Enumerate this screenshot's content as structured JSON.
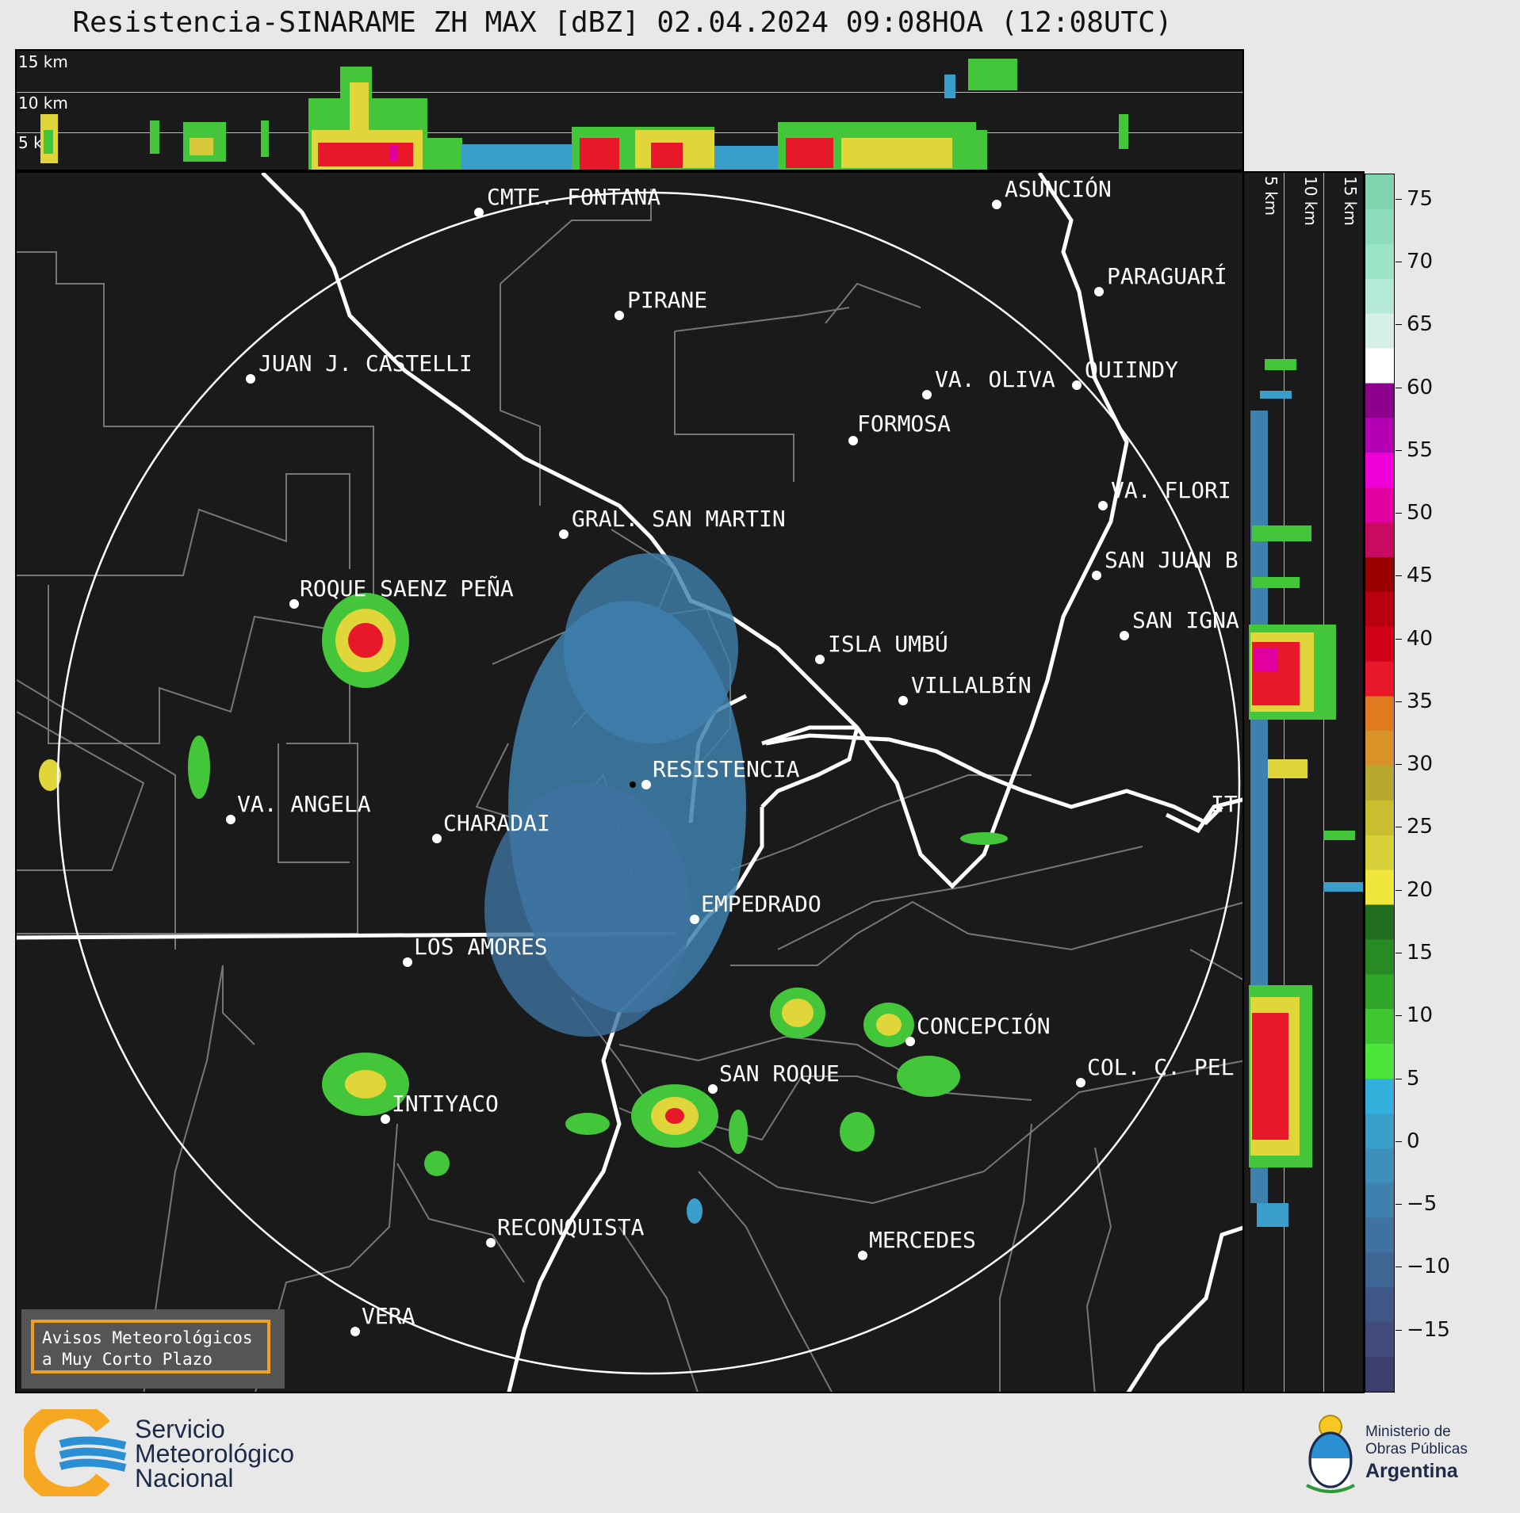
{
  "title": "Resistencia-SINARAME ZH MAX [dBZ] 02.04.2024 09:08HOA (12:08UTC)",
  "top_panel": {
    "labels": [
      "15 km",
      "10 km",
      "5 km"
    ]
  },
  "right_panel": {
    "labels": [
      "5 km",
      "10 km",
      "15 km"
    ]
  },
  "colorbar": {
    "unit": "dBZ",
    "ticks": [
      "75",
      "70",
      "65",
      "60",
      "55",
      "50",
      "45",
      "40",
      "35",
      "30",
      "25",
      "20",
      "15",
      "10",
      "5",
      "0",
      "−5",
      "−10",
      "−15"
    ],
    "range": [
      -20,
      77
    ],
    "colors": [
      "#3c3f6e",
      "#414a7b",
      "#3f5787",
      "#3f6594",
      "#3f72a0",
      "#3f80ad",
      "#3f8fbb",
      "#3a9ecb",
      "#34b0dd",
      "#4ce63a",
      "#3ec731",
      "#2fa628",
      "#278a23",
      "#216f1e",
      "#f0e63c",
      "#d8d23a",
      "#c8be30",
      "#b8a830",
      "#d89228",
      "#e07a20",
      "#e8182a",
      "#d00018",
      "#b80010",
      "#990000",
      "#c80a60",
      "#e000a0",
      "#f000d8",
      "#b400b4",
      "#8c008c",
      "#ffffff",
      "#d6f0e6",
      "#b4ead6",
      "#9ce4c8",
      "#8cdcbc",
      "#80d4b0"
    ]
  },
  "cities": [
    {
      "name": "CMTE. FONTANA"
    },
    {
      "name": "ASUNCIÓN"
    },
    {
      "name": "PIRANE"
    },
    {
      "name": "PARAGUARÍ"
    },
    {
      "name": "JUAN J. CASTELLI"
    },
    {
      "name": "VA. OLIVA"
    },
    {
      "name": "QUIINDY"
    },
    {
      "name": "FORMOSA"
    },
    {
      "name": "VA. FLORI"
    },
    {
      "name": "GRAL. SAN MARTIN"
    },
    {
      "name": "SAN JUAN B"
    },
    {
      "name": "ROQUE SAENZ PEÑA"
    },
    {
      "name": "SAN IGNA"
    },
    {
      "name": "ISLA UMBÚ"
    },
    {
      "name": "VILLALBÍN"
    },
    {
      "name": "RESISTENCIA"
    },
    {
      "name": "IT"
    },
    {
      "name": "VA. ANGELA"
    },
    {
      "name": "CHARADAI"
    },
    {
      "name": "EMPEDRADO"
    },
    {
      "name": "LOS AMORES"
    },
    {
      "name": "CONCEPCIÓN"
    },
    {
      "name": "SAN ROQUE"
    },
    {
      "name": "COL. C. PEL"
    },
    {
      "name": "INTIYACO"
    },
    {
      "name": "RECONQUISTA"
    },
    {
      "name": "MERCEDES"
    },
    {
      "name": "VERA"
    }
  ],
  "warning": {
    "line1": "Avisos Meteorológicos",
    "line2": "a Muy Corto Plazo"
  },
  "smn": {
    "line1": "Servicio",
    "line2": "Meteorológico",
    "line3": "Nacional"
  },
  "ministry": {
    "line1": "Ministerio de",
    "line2": "Obras Públicas",
    "line3": "Argentina"
  },
  "colors": {
    "background": "#1a1a1a",
    "ring": "#ffffff",
    "boundary": "#777777",
    "logo_orange": "#f7a823",
    "logo_blue": "#2b8fd3"
  }
}
